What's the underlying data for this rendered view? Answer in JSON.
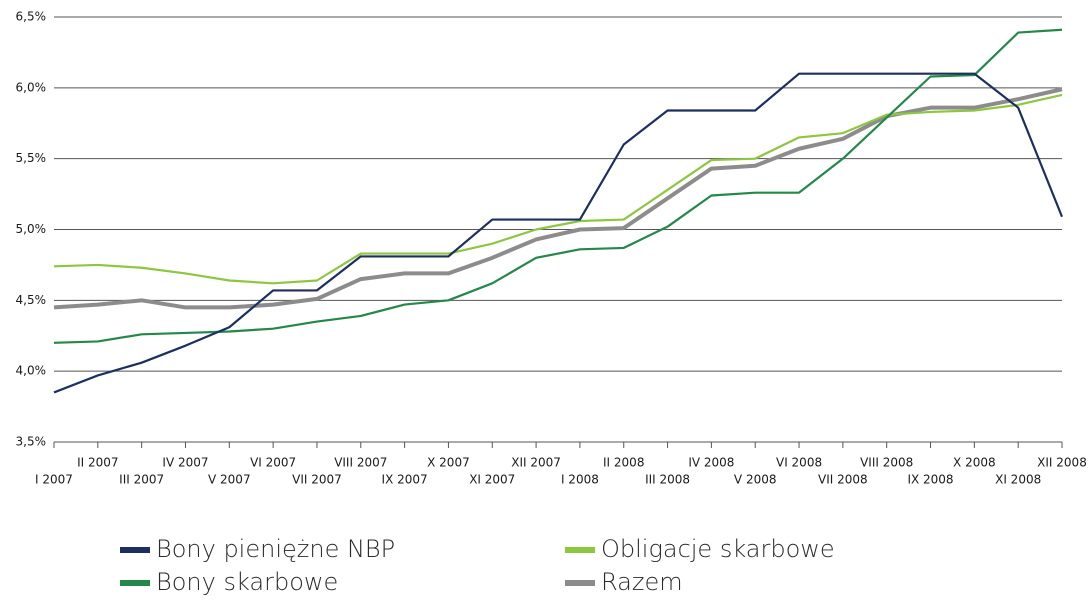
{
  "chart_data": {
    "type": "line",
    "categories": [
      "I 2007",
      "II 2007",
      "III 2007",
      "IV 2007",
      "V 2007",
      "VI 2007",
      "VII 2007",
      "VIII 2007",
      "IX 2007",
      "X 2007",
      "XI 2007",
      "XII 2007",
      "I 2008",
      "II 2008",
      "III 2008",
      "IV 2008",
      "V 2008",
      "VI 2008",
      "VII 2008",
      "VIII 2008",
      "IX 2008",
      "X 2008",
      "XI 2008",
      "XII 2008"
    ],
    "series": [
      {
        "name": "Bony pieniężne NBP",
        "color": "#1c2f5e",
        "values": [
          3.85,
          3.97,
          4.06,
          4.18,
          4.31,
          4.57,
          4.57,
          4.81,
          4.81,
          4.81,
          5.07,
          5.07,
          5.07,
          5.6,
          5.84,
          5.84,
          5.84,
          6.1,
          6.1,
          6.1,
          6.1,
          6.1,
          5.86,
          5.09
        ]
      },
      {
        "name": "Bony skarbowe",
        "color": "#23884a",
        "values": [
          4.2,
          4.21,
          4.26,
          4.27,
          4.28,
          4.3,
          4.35,
          4.39,
          4.47,
          4.5,
          4.62,
          4.8,
          4.86,
          4.87,
          5.02,
          5.24,
          5.26,
          5.26,
          5.5,
          5.79,
          6.08,
          6.09,
          6.39,
          6.41
        ]
      },
      {
        "name": "Obligacje skarbowe",
        "color": "#8dc63f",
        "values": [
          4.74,
          4.75,
          4.73,
          4.69,
          4.64,
          4.62,
          4.64,
          4.83,
          4.83,
          4.83,
          4.9,
          5.0,
          5.06,
          5.07,
          5.28,
          5.49,
          5.5,
          5.65,
          5.68,
          5.81,
          5.83,
          5.84,
          5.88,
          5.95
        ]
      },
      {
        "name": "Razem",
        "color": "#8c8c8c",
        "values": [
          4.45,
          4.47,
          4.5,
          4.45,
          4.45,
          4.47,
          4.51,
          4.65,
          4.69,
          4.69,
          4.8,
          4.93,
          5.0,
          5.01,
          5.22,
          5.43,
          5.45,
          5.57,
          5.64,
          5.8,
          5.86,
          5.86,
          5.92,
          5.99
        ]
      }
    ],
    "ylim": [
      3.5,
      6.5
    ],
    "yticks": [
      {
        "value": 3.5,
        "label": "3,5%"
      },
      {
        "value": 4.0,
        "label": "4,0%"
      },
      {
        "value": 4.5,
        "label": "4,5%"
      },
      {
        "value": 5.0,
        "label": "5,0%"
      },
      {
        "value": 5.5,
        "label": "5,5%"
      },
      {
        "value": 6.0,
        "label": "6,0%"
      },
      {
        "value": 6.5,
        "label": "6,5%"
      }
    ],
    "grid": true
  }
}
